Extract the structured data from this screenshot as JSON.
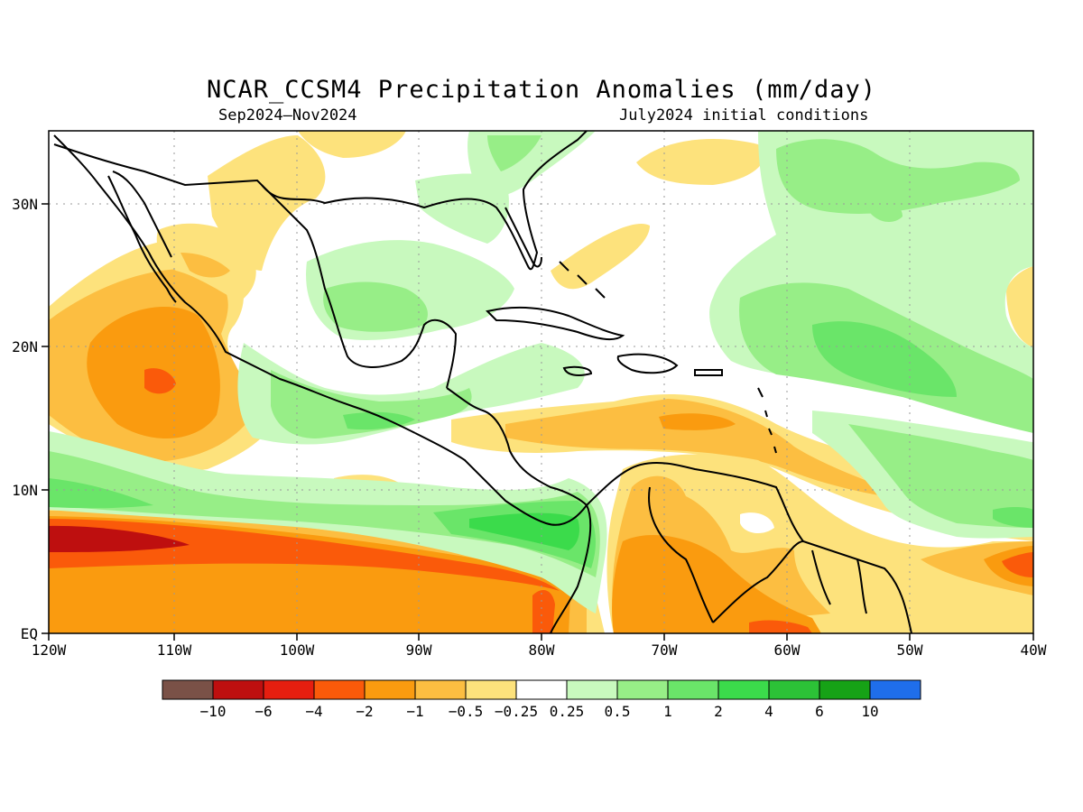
{
  "title": "NCAR_CCSM4 Precipitation Anomalies (mm/day)",
  "subtitle_left": "Sep2024–Nov2024",
  "subtitle_right": "July2024 initial conditions",
  "axes": {
    "lon_labels": [
      "120W",
      "110W",
      "100W",
      "90W",
      "80W",
      "70W",
      "60W",
      "50W",
      "40W"
    ],
    "lat_labels": [
      "EQ",
      "10N",
      "20N",
      "30N"
    ]
  },
  "colorbar": {
    "colors": [
      "#7a5147",
      "#be0f0f",
      "#e61e0f",
      "#fa5a0a",
      "#fa9b0f",
      "#fcbe41",
      "#fde27c",
      "#ffffff",
      "#c8f9be",
      "#97ee87",
      "#6ae569",
      "#3bdb4b",
      "#2cc237",
      "#16a216",
      "#1f6eeb"
    ],
    "labels": [
      "−10",
      "−6",
      "−4",
      "−2",
      "−1",
      "−0.5",
      "−0.25",
      "0.25",
      "0.5",
      "1",
      "2",
      "4",
      "6",
      "10"
    ]
  }
}
